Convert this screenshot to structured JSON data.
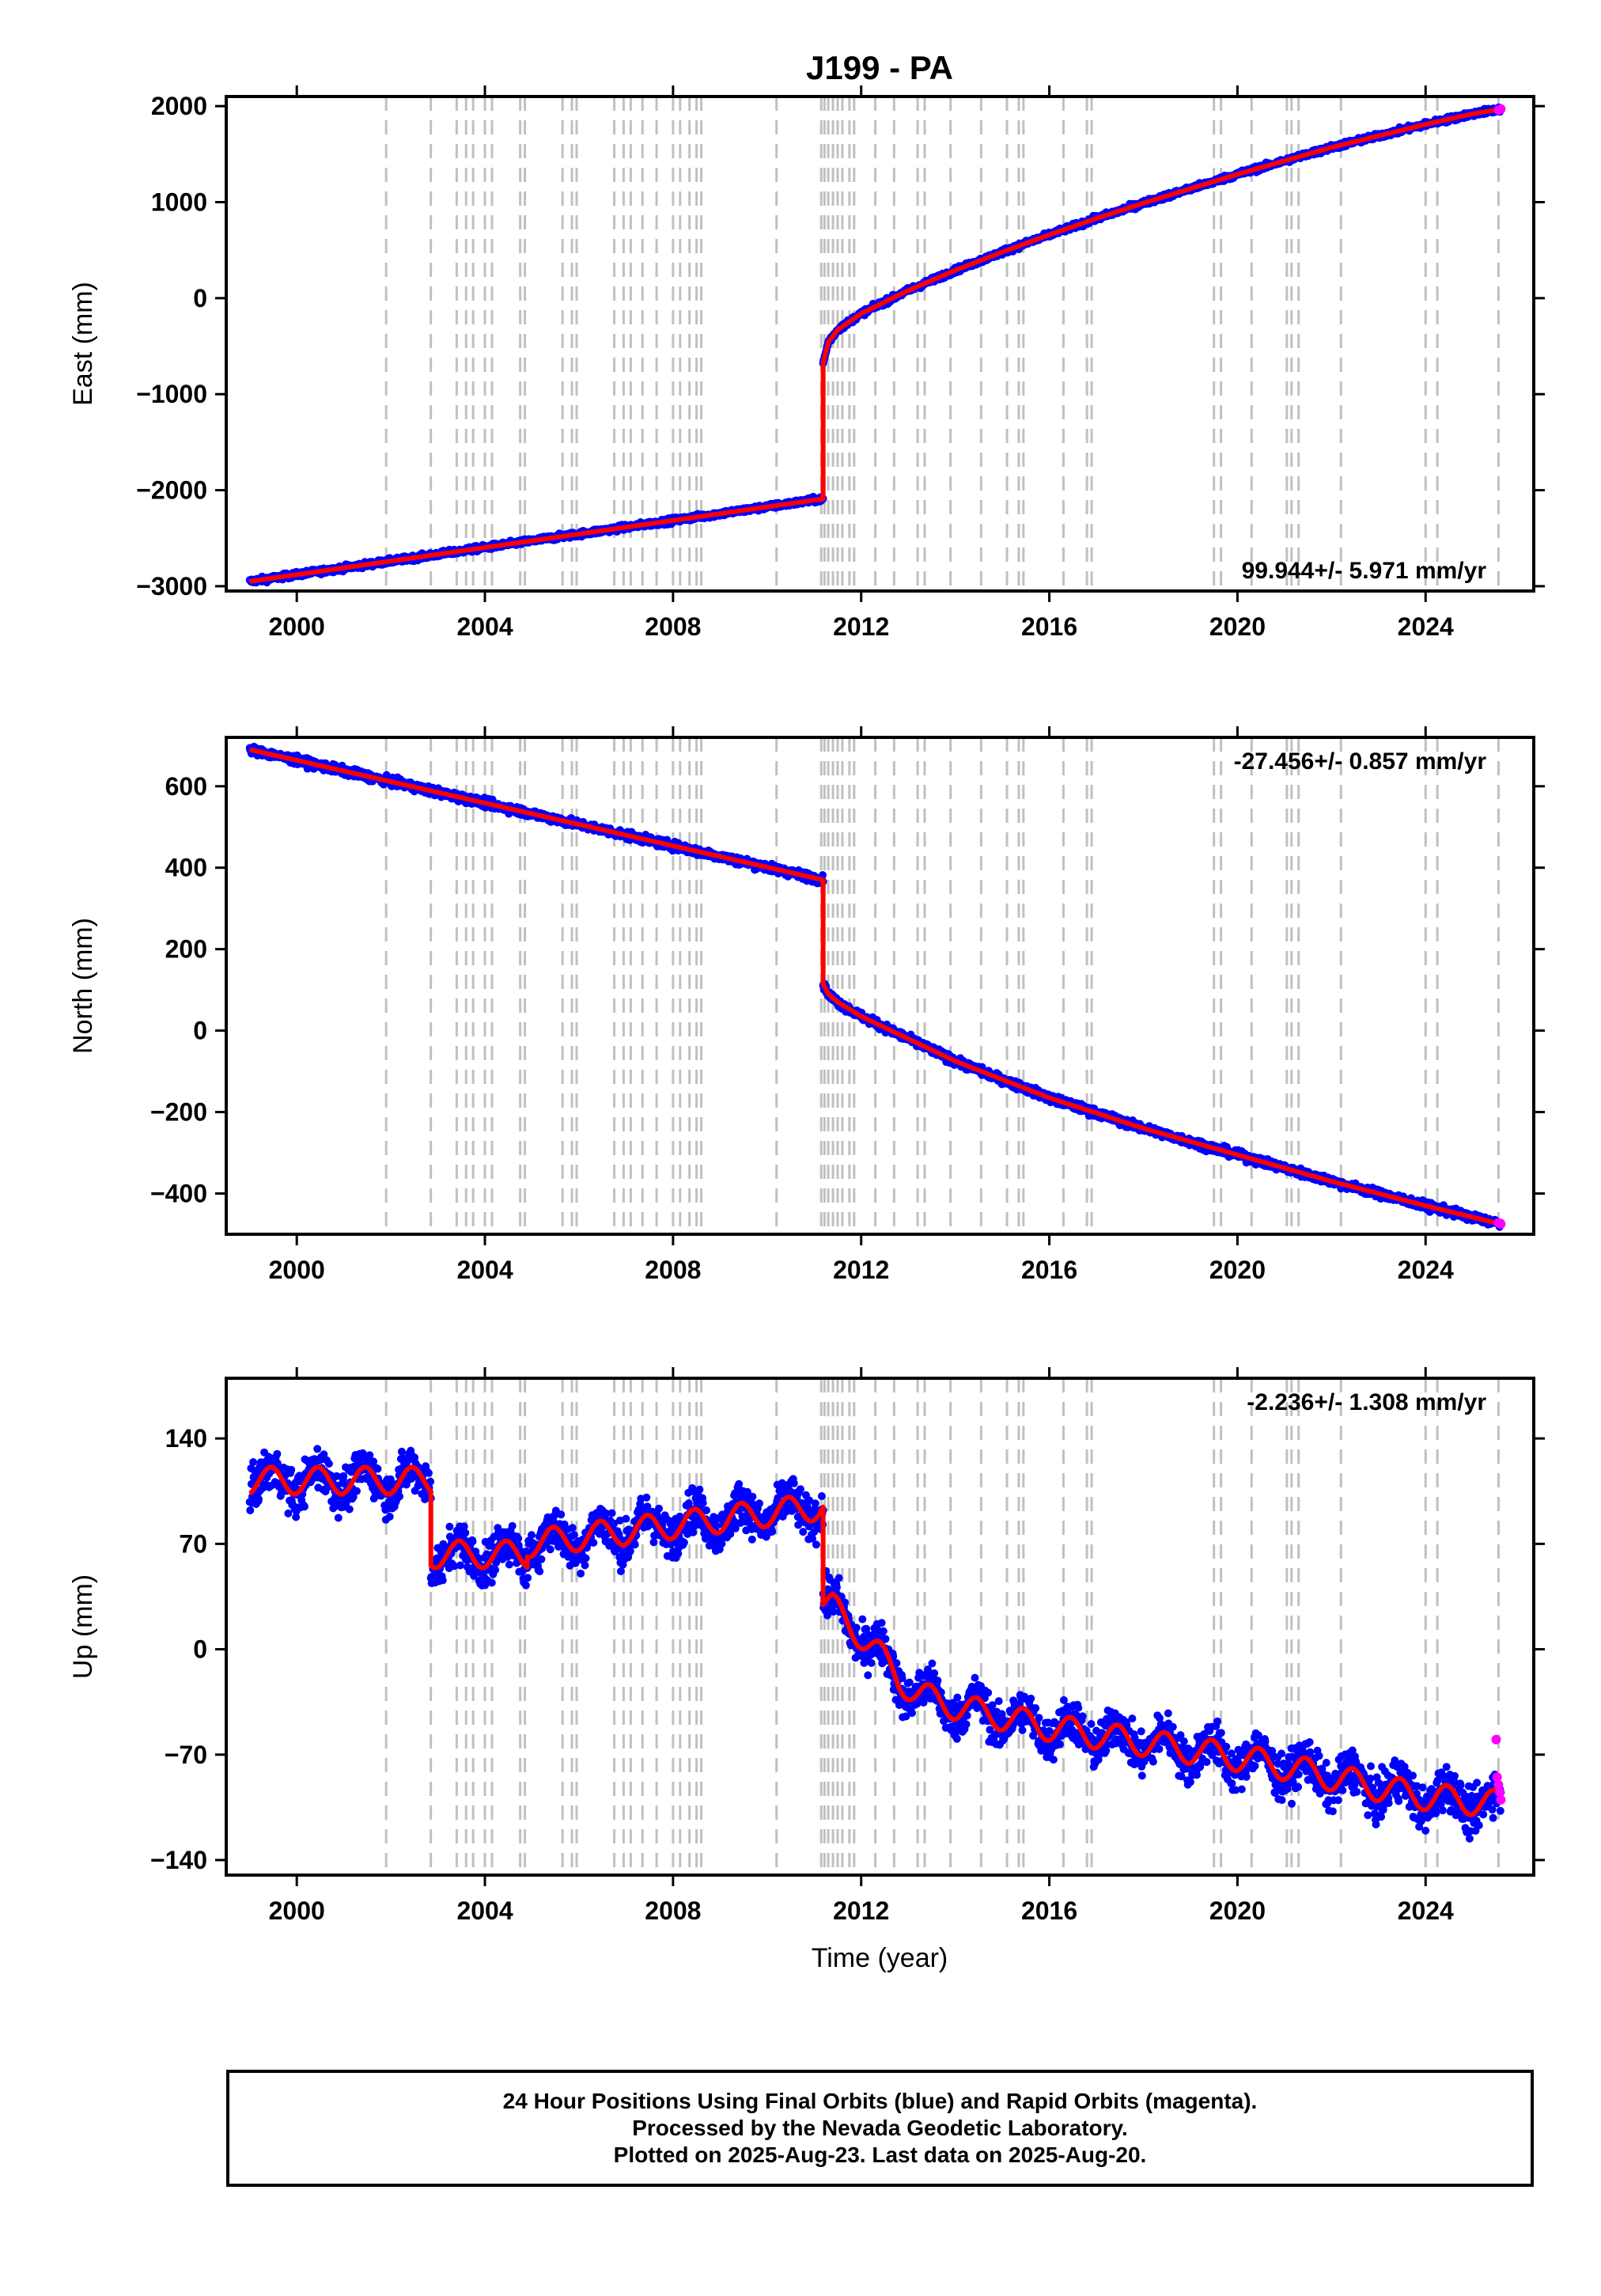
{
  "title": "J199 - PA",
  "colors": {
    "final_orbits": "#0000ff",
    "rapid_orbits": "#ff00ff",
    "model": "#ff0000",
    "event_lines": "#c0c0c0",
    "axes": "#000000"
  },
  "x_axis": {
    "label": "Time (year)",
    "range": [
      1998.5,
      2026.3
    ],
    "ticks": [
      2000,
      2004,
      2008,
      2012,
      2016,
      2020,
      2024
    ],
    "tick_labels": [
      "2000",
      "2004",
      "2008",
      "2012",
      "2016",
      "2020",
      "2024"
    ]
  },
  "event_lines_years": [
    2001.9,
    2002.85,
    2003.4,
    2003.6,
    2003.75,
    2004.0,
    2004.15,
    2004.75,
    2004.85,
    2005.65,
    2005.85,
    2005.95,
    2006.75,
    2006.95,
    2007.1,
    2007.35,
    2007.65,
    2008.0,
    2008.15,
    2008.35,
    2008.5,
    2008.6,
    2010.2,
    2011.15,
    2011.22,
    2011.3,
    2011.4,
    2011.5,
    2011.6,
    2011.75,
    2011.85,
    2012.3,
    2012.7,
    2013.2,
    2013.35,
    2013.9,
    2014.55,
    2015.1,
    2015.35,
    2015.45,
    2016.3,
    2016.8,
    2016.9,
    2019.5,
    2019.65,
    2020.3,
    2021.05,
    2021.15,
    2021.3,
    2022.2,
    2024.0,
    2024.25,
    2025.55
  ],
  "chart_data": [
    {
      "type": "scatter",
      "component": "east",
      "ylabel": "East (mm)",
      "ylim": [
        -3050,
        2100
      ],
      "yticks": [
        -3000,
        -2000,
        -1000,
        0,
        1000,
        2000
      ],
      "ytick_labels": [
        "−3000",
        "−2000",
        "−1000",
        "0",
        "1000",
        "2000"
      ],
      "rate_label": "99.944+/- 5.971 mm/yr",
      "rate_position": "bottom-right",
      "earthquake_year": 2011.19,
      "segments": [
        {
          "x": [
            1999.0,
            2011.19
          ],
          "y": [
            -2950,
            -2090
          ]
        },
        {
          "x": [
            2011.19,
            2011.3,
            2011.5,
            2012.0,
            2013.0,
            2014.0,
            2015.0,
            2016.0,
            2017.0,
            2018.0,
            2019.0,
            2020.0,
            2021.0,
            2022.0,
            2023.0,
            2024.0,
            2025.0,
            2025.6
          ],
          "y": [
            -680,
            -460,
            -330,
            -160,
            80,
            290,
            480,
            660,
            830,
            990,
            1140,
            1290,
            1430,
            1570,
            1690,
            1810,
            1920,
            1970
          ]
        }
      ],
      "noise_amplitude": 20,
      "rapid_points": [
        {
          "x": 2025.55,
          "y": 1960
        },
        {
          "x": 2025.6,
          "y": 1970
        }
      ]
    },
    {
      "type": "scatter",
      "component": "north",
      "ylabel": "North (mm)",
      "ylim": [
        -500,
        720
      ],
      "yticks": [
        -400,
        -200,
        0,
        200,
        400,
        600
      ],
      "ytick_labels": [
        "−400",
        "−200",
        "0",
        "200",
        "400",
        "600"
      ],
      "rate_label": "-27.456+/- 0.857 mm/yr",
      "rate_position": "top-right",
      "earthquake_year": 2011.19,
      "segments": [
        {
          "x": [
            1999.0,
            2011.19
          ],
          "y": [
            690,
            370
          ]
        },
        {
          "x": [
            2011.19,
            2011.3,
            2011.5,
            2012.0,
            2013.0,
            2014.0,
            2016.0,
            2018.0,
            2020.0,
            2022.0,
            2024.0,
            2025.6
          ],
          "y": [
            115,
            90,
            70,
            35,
            -20,
            -75,
            -165,
            -240,
            -305,
            -370,
            -430,
            -475
          ]
        }
      ],
      "noise_amplitude": 7,
      "rapid_points": [
        {
          "x": 2025.55,
          "y": -472
        },
        {
          "x": 2025.6,
          "y": -475
        }
      ]
    },
    {
      "type": "scatter",
      "component": "up",
      "ylabel": "Up (mm)",
      "ylim": [
        -150,
        180
      ],
      "yticks": [
        -140,
        -70,
        0,
        70,
        140
      ],
      "ytick_labels": [
        "−140",
        "−70",
        "0",
        "70",
        "140"
      ],
      "rate_label": "-2.236+/- 1.308 mm/yr",
      "rate_position": "top-right",
      "segments": [
        {
          "x": [
            1999.0,
            2002.85
          ],
          "y": [
            112,
            112
          ]
        },
        {
          "x": [
            2002.85,
            2004.9
          ],
          "y": [
            63,
            63
          ]
        },
        {
          "x": [
            2004.9,
            2011.19
          ],
          "y": [
            70,
            95
          ]
        },
        {
          "x": [
            2011.19,
            2011.4,
            2011.8,
            2012.3,
            2012.8,
            2013.2,
            2014.0,
            2015.0,
            2016.0,
            2017.0,
            2018.0,
            2019.0,
            2020.0,
            2021.0,
            2022.0,
            2023.0,
            2024.0,
            2025.6
          ],
          "y": [
            30,
            28,
            15,
            0,
            -20,
            -30,
            -38,
            -45,
            -52,
            -57,
            -62,
            -67,
            -72,
            -78,
            -85,
            -92,
            -98,
            -103
          ]
        }
      ],
      "seasonal_amplitude": 9,
      "noise_amplitude": 10,
      "rapid_points": [
        {
          "x": 2025.5,
          "y": -60
        },
        {
          "x": 2025.52,
          "y": -85
        },
        {
          "x": 2025.55,
          "y": -90
        },
        {
          "x": 2025.58,
          "y": -95
        },
        {
          "x": 2025.6,
          "y": -100
        }
      ]
    }
  ],
  "footer": {
    "line1": "24 Hour Positions Using Final Orbits (blue) and Rapid Orbits (magenta).",
    "line2": "Processed by the Nevada Geodetic Laboratory.",
    "line3": "Plotted on 2025-Aug-23. Last data on 2025-Aug-20."
  }
}
